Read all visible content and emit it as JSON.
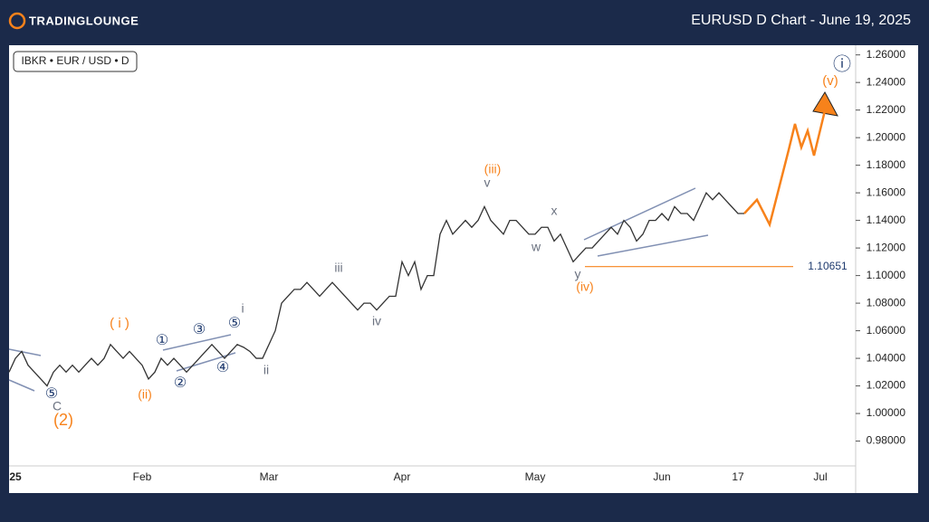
{
  "header": {
    "logo": "TradingLounge",
    "title": "EURUSD D Chart - June 19, 2025"
  },
  "chart_data": {
    "type": "line",
    "title": "IBKR • EUR / USD • D",
    "categories": [
      null,
      "25",
      null,
      null,
      null,
      null,
      null,
      null,
      null,
      null,
      null,
      null,
      null,
      null,
      null,
      null,
      null,
      null,
      null,
      null,
      null,
      "Feb",
      null,
      null,
      null,
      null,
      null,
      null,
      null,
      null,
      null,
      null,
      null,
      null,
      null,
      null,
      null,
      null,
      null,
      null,
      null,
      "Mar",
      null,
      null,
      null,
      null,
      null,
      null,
      null,
      null,
      null,
      null,
      null,
      null,
      null,
      null,
      null,
      null,
      null,
      null,
      null,
      null,
      "Apr",
      null,
      null,
      null,
      null,
      null,
      null,
      null,
      null,
      null,
      null,
      null,
      null,
      null,
      null,
      null,
      null,
      null,
      null,
      null,
      null,
      "May",
      null,
      null,
      null,
      null,
      null,
      null,
      null,
      null,
      null,
      null,
      null,
      null,
      null,
      null,
      null,
      null,
      null,
      null,
      null,
      "Jun",
      null,
      null,
      null,
      null,
      null,
      null,
      null,
      null,
      null,
      null,
      null,
      "17",
      null,
      null,
      null,
      null,
      null,
      null,
      null,
      null,
      null,
      null,
      null,
      null,
      "Jul",
      null
    ],
    "series": [
      {
        "name": "EURUSD",
        "color": "#333333",
        "values": [
          1.03,
          1.04,
          1.045,
          1.035,
          1.03,
          1.025,
          1.02,
          1.03,
          1.035,
          1.03,
          1.035,
          1.03,
          1.035,
          1.04,
          1.035,
          1.04,
          1.05,
          1.045,
          1.04,
          1.045,
          1.04,
          1.035,
          1.025,
          1.03,
          1.04,
          1.035,
          1.04,
          1.035,
          1.03,
          1.035,
          1.04,
          1.045,
          1.05,
          1.045,
          1.04,
          1.045,
          1.05,
          1.048,
          1.045,
          1.04,
          1.04,
          1.05,
          1.06,
          1.08,
          1.085,
          1.09,
          1.09,
          1.095,
          1.09,
          1.085,
          1.09,
          1.095,
          1.09,
          1.085,
          1.08,
          1.075,
          1.08,
          1.08,
          1.075,
          1.08,
          1.085,
          1.085,
          1.11,
          1.1,
          1.11,
          1.09,
          1.1,
          1.1,
          1.13,
          1.14,
          1.13,
          1.135,
          1.14,
          1.135,
          1.14,
          1.15,
          1.14,
          1.135,
          1.13,
          1.14,
          1.14,
          1.135,
          1.13,
          1.13,
          1.135,
          1.135,
          1.125,
          1.13,
          1.12,
          1.11,
          1.115,
          1.12,
          1.12,
          1.125,
          1.13,
          1.135,
          1.13,
          1.14,
          1.135,
          1.125,
          1.13,
          1.14,
          1.14,
          1.145,
          1.14,
          1.15,
          1.145,
          1.145,
          1.14,
          1.15,
          1.16,
          1.155,
          1.16,
          1.155,
          1.15,
          1.145,
          1.145,
          null,
          null,
          null,
          null,
          null,
          null,
          null,
          null,
          null,
          null,
          null,
          null,
          null
        ]
      },
      {
        "name": "Forecast",
        "color": "#f7821b",
        "values": [
          null,
          null,
          null,
          null,
          null,
          null,
          null,
          null,
          null,
          null,
          null,
          null,
          null,
          null,
          null,
          null,
          null,
          null,
          null,
          null,
          null,
          null,
          null,
          null,
          null,
          null,
          null,
          null,
          null,
          null,
          null,
          null,
          null,
          null,
          null,
          null,
          null,
          null,
          null,
          null,
          null,
          null,
          null,
          null,
          null,
          null,
          null,
          null,
          null,
          null,
          null,
          null,
          null,
          null,
          null,
          null,
          null,
          null,
          null,
          null,
          null,
          null,
          null,
          null,
          null,
          null,
          null,
          null,
          null,
          null,
          null,
          null,
          null,
          null,
          null,
          null,
          null,
          null,
          null,
          null,
          null,
          null,
          null,
          null,
          null,
          null,
          null,
          null,
          null,
          null,
          null,
          null,
          null,
          null,
          null,
          null,
          null,
          null,
          null,
          null,
          null,
          null,
          null,
          null,
          null,
          null,
          null,
          null,
          null,
          null,
          null,
          null,
          null,
          null,
          null,
          null,
          1.145,
          1.15,
          1.155,
          1.146,
          1.137,
          1.155,
          1.173,
          1.191,
          1.21,
          1.193,
          1.205,
          1.187,
          1.206,
          1.225
        ]
      }
    ],
    "ylim": [
      0.962,
      1.267
    ],
    "yticks": [
      {
        "value": 0.98,
        "label": "0.98000"
      },
      {
        "value": 1.0,
        "label": "1.00000"
      },
      {
        "value": 1.02,
        "label": "1.02000"
      },
      {
        "value": 1.04,
        "label": "1.04000"
      },
      {
        "value": 1.06,
        "label": "1.06000"
      },
      {
        "value": 1.08,
        "label": "1.08000"
      },
      {
        "value": 1.1,
        "label": "1.10000"
      },
      {
        "value": 1.12,
        "label": "1.12000"
      },
      {
        "value": 1.14,
        "label": "1.14000"
      },
      {
        "value": 1.16,
        "label": "1.16000"
      },
      {
        "value": 1.18,
        "label": "1.18000"
      },
      {
        "value": 1.2,
        "label": "1.20000"
      },
      {
        "value": 1.22,
        "label": "1.22000"
      },
      {
        "value": 1.24,
        "label": "1.24000"
      },
      {
        "value": 1.26,
        "label": "1.26000"
      }
    ],
    "level": {
      "value": 1.10651,
      "label": "1.10651",
      "color": "#f7821b"
    },
    "annotations": [
      {
        "text": "(2)",
        "color": "#f7821b"
      },
      {
        "text": "C",
        "color": "#6b7280"
      },
      {
        "text": "⑤",
        "color": "#1e3a6e"
      },
      {
        "text": "( i )",
        "color": "#f7821b"
      },
      {
        "text": "(ii)",
        "color": "#f7821b"
      },
      {
        "text": "①",
        "color": "#1e3a6e"
      },
      {
        "text": "②",
        "color": "#1e3a6e"
      },
      {
        "text": "③",
        "color": "#1e3a6e"
      },
      {
        "text": "④",
        "color": "#1e3a6e"
      },
      {
        "text": "⑤",
        "color": "#1e3a6e"
      },
      {
        "text": "i",
        "color": "#6b7280"
      },
      {
        "text": "ii",
        "color": "#6b7280"
      },
      {
        "text": "iii",
        "color": "#6b7280"
      },
      {
        "text": "iv",
        "color": "#6b7280"
      },
      {
        "text": "(iii)",
        "color": "#f7821b"
      },
      {
        "text": "v",
        "color": "#6b7280"
      },
      {
        "text": "x",
        "color": "#6b7280"
      },
      {
        "text": "w",
        "color": "#6b7280"
      },
      {
        "text": "y",
        "color": "#6b7280"
      },
      {
        "text": "(iv)",
        "color": "#f7821b"
      },
      {
        "text": "ⓘ",
        "color": "#1e3a6e"
      },
      {
        "text": "(v)",
        "color": "#f7821b"
      }
    ]
  }
}
